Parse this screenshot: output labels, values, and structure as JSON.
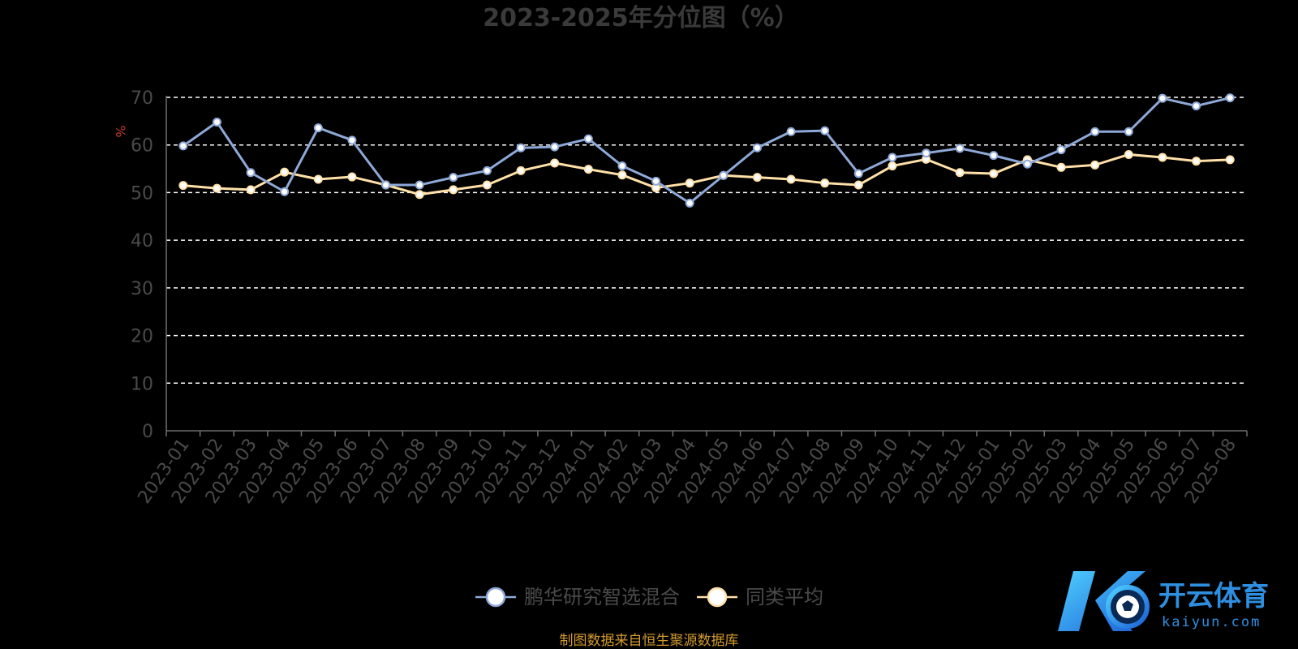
{
  "chart_data": {
    "type": "line",
    "title": "2023-2025年分位图（%）",
    "ylabel": "%",
    "ylim": [
      0,
      70
    ],
    "yticks": [
      0,
      10,
      20,
      30,
      40,
      50,
      60,
      70
    ],
    "grid": true,
    "legend_position": "bottom-center",
    "categories": [
      "2023-01",
      "2023-02",
      "2023-03",
      "2023-04",
      "2023-05",
      "2023-06",
      "2023-07",
      "2023-08",
      "2023-09",
      "2023-10",
      "2023-11",
      "2023-12",
      "2024-01",
      "2024-02",
      "2024-03",
      "2024-04",
      "2024-05",
      "2024-06",
      "2024-07",
      "2024-08",
      "2024-09",
      "2024-10",
      "2024-11",
      "2024-12",
      "2025-01",
      "2025-02",
      "2025-03",
      "2025-04",
      "2025-05",
      "2025-06",
      "2025-07",
      "2025-08"
    ],
    "series": [
      {
        "name": "鹏华研究智选混合",
        "color": "#8ea9d8",
        "values": [
          59.8,
          64.8,
          54.2,
          50.2,
          63.6,
          61.0,
          51.6,
          51.6,
          53.2,
          54.6,
          59.4,
          59.6,
          61.3,
          55.6,
          52.4,
          47.8,
          53.6,
          59.4,
          62.8,
          63.0,
          54.0,
          57.4,
          58.3,
          59.3,
          57.8,
          56.0,
          59.0,
          62.8,
          62.8,
          69.8,
          68.2,
          69.9
        ]
      },
      {
        "name": "同类平均",
        "color": "#ffe0a8",
        "values": [
          51.5,
          50.9,
          50.6,
          54.3,
          52.8,
          53.3,
          51.6,
          49.6,
          50.6,
          51.6,
          54.6,
          56.2,
          54.9,
          53.7,
          51.0,
          52.0,
          53.6,
          53.2,
          52.8,
          52.0,
          51.6,
          55.6,
          57.0,
          54.2,
          54.0,
          56.9,
          55.3,
          55.8,
          58.0,
          57.4,
          56.6,
          56.9
        ]
      }
    ],
    "source": "制图数据来自恒生聚源数据库"
  },
  "colors": {
    "background": "#000000",
    "axis": "#6e6e6e",
    "grid": "#ffffff"
  },
  "watermark": {
    "brand": "开云体育",
    "domain": "kaiyun.com"
  }
}
